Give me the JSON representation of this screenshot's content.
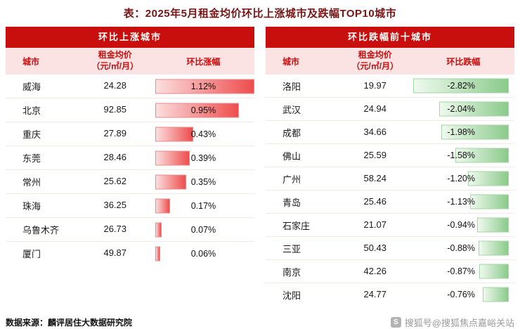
{
  "title": "表：2025年5月租金均价环比上涨城市及跌幅TOP10城市",
  "colors": {
    "title_text": "#7a1414",
    "header_bg": "#c90e0e",
    "header_text": "#ffffff",
    "subheader_bg": "#fbe3e3",
    "subheader_text": "#c90e0e",
    "rise_bar_from": "#fcdede",
    "rise_bar_to": "#ee4d4d",
    "rise_bar_border": "#e88b8b",
    "fall_bar_from": "#effaef",
    "fall_bar_to": "#8bca8b",
    "fall_bar_border": "#a5d4a5"
  },
  "rise_table": {
    "header": "环比上涨城市",
    "columns": {
      "city": "城市",
      "price_line1": "租金均价",
      "price_line2": "（元/㎡/月）",
      "change": "环比涨幅"
    },
    "rows": [
      {
        "city": "威海",
        "price": "24.28",
        "change": "1.12%",
        "value": 1.12
      },
      {
        "city": "北京",
        "price": "92.85",
        "change": "0.95%",
        "value": 0.95
      },
      {
        "city": "重庆",
        "price": "27.89",
        "change": "0.43%",
        "value": 0.43
      },
      {
        "city": "东莞",
        "price": "28.46",
        "change": "0.39%",
        "value": 0.39
      },
      {
        "city": "常州",
        "price": "25.62",
        "change": "0.35%",
        "value": 0.35
      },
      {
        "city": "珠海",
        "price": "36.25",
        "change": "0.17%",
        "value": 0.17
      },
      {
        "city": "乌鲁木齐",
        "price": "26.73",
        "change": "0.07%",
        "value": 0.07
      },
      {
        "city": "厦门",
        "price": "49.87",
        "change": "0.06%",
        "value": 0.06
      }
    ]
  },
  "fall_table": {
    "header": "环比跌幅前十城市",
    "columns": {
      "city": "城市",
      "price_line1": "租金均价",
      "price_line2": "（元/㎡/月）",
      "change": "环比跌幅"
    },
    "rows": [
      {
        "city": "洛阳",
        "price": "19.97",
        "change": "-2.82%",
        "value": -2.82
      },
      {
        "city": "武汉",
        "price": "24.94",
        "change": "-2.04%",
        "value": -2.04
      },
      {
        "city": "成都",
        "price": "34.66",
        "change": "-1.98%",
        "value": -1.98
      },
      {
        "city": "佛山",
        "price": "25.59",
        "change": "-1.58%",
        "value": -1.58
      },
      {
        "city": "广州",
        "price": "58.24",
        "change": "-1.20%",
        "value": -1.2
      },
      {
        "city": "青岛",
        "price": "25.46",
        "change": "-1.13%",
        "value": -1.13
      },
      {
        "city": "石家庄",
        "price": "21.07",
        "change": "-0.94%",
        "value": -0.94
      },
      {
        "city": "三亚",
        "price": "50.43",
        "change": "-0.88%",
        "value": -0.88
      },
      {
        "city": "南京",
        "price": "42.26",
        "change": "-0.87%",
        "value": -0.87
      },
      {
        "city": "沈阳",
        "price": "24.77",
        "change": "-0.76%",
        "value": -0.76
      }
    ]
  },
  "footer": {
    "source": "数据来源：麟评居住大数据研究院",
    "logo_glyph": "S",
    "watermark": "搜狐号@搜狐焦点嘉峪关站"
  },
  "chart_data": [
    {
      "type": "bar",
      "title": "环比上涨城市",
      "categories": [
        "威海",
        "北京",
        "重庆",
        "东莞",
        "常州",
        "珠海",
        "乌鲁木齐",
        "厦门"
      ],
      "series": [
        {
          "name": "租金均价（元/㎡/月）",
          "values": [
            24.28,
            92.85,
            27.89,
            28.46,
            25.62,
            36.25,
            26.73,
            49.87
          ]
        },
        {
          "name": "环比涨幅(%)",
          "values": [
            1.12,
            0.95,
            0.43,
            0.39,
            0.35,
            0.17,
            0.07,
            0.06
          ]
        }
      ],
      "xlabel": "城市",
      "ylabel": "环比涨幅",
      "legend_position": "none",
      "grid": false
    },
    {
      "type": "bar",
      "title": "环比跌幅前十城市",
      "categories": [
        "洛阳",
        "武汉",
        "成都",
        "佛山",
        "广州",
        "青岛",
        "石家庄",
        "三亚",
        "南京",
        "沈阳"
      ],
      "series": [
        {
          "name": "租金均价（元/㎡/月）",
          "values": [
            19.97,
            24.94,
            34.66,
            25.59,
            58.24,
            25.46,
            21.07,
            50.43,
            42.26,
            24.77
          ]
        },
        {
          "name": "环比跌幅(%)",
          "values": [
            -2.82,
            -2.04,
            -1.98,
            -1.58,
            -1.2,
            -1.13,
            -0.94,
            -0.88,
            -0.87,
            -0.76
          ]
        }
      ],
      "xlabel": "城市",
      "ylabel": "环比跌幅",
      "legend_position": "none",
      "grid": false
    }
  ]
}
